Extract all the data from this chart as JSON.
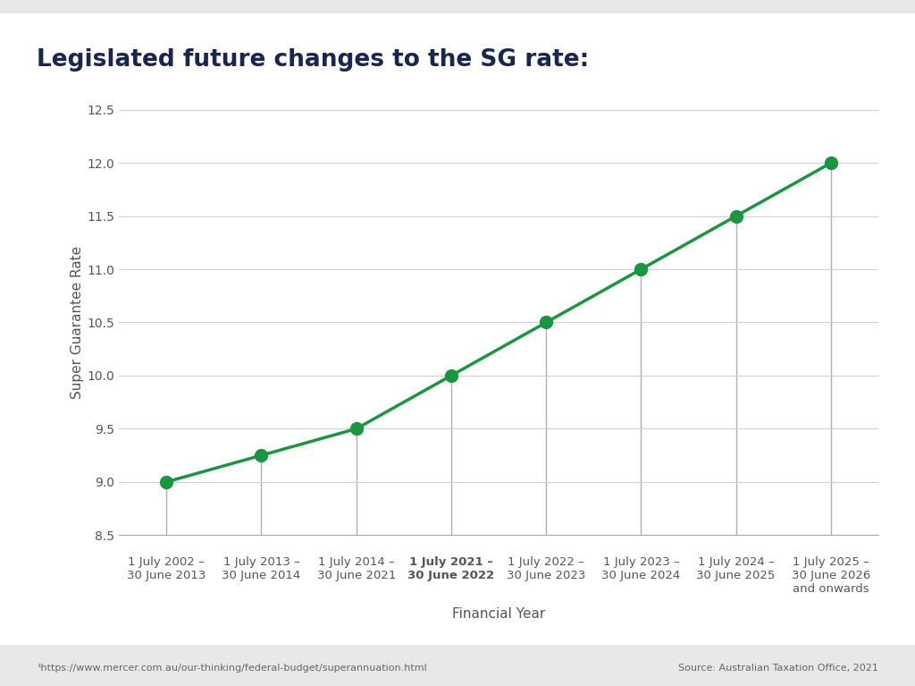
{
  "title": "Legislated future changes to the SG rate:",
  "xlabel": "Financial Year",
  "ylabel": "Super Guarantee Rate",
  "x_labels": [
    "1 July 2002 –\n30 June 2013",
    "1 July 2013 –\n30 June 2014",
    "1 July 2014 –\n30 June 2021",
    "1 July 2021 –\n30 June 2022",
    "1 July 2022 –\n30 June 2023",
    "1 July 2023 –\n30 June 2024",
    "1 July 2024 –\n30 June 2025",
    "1 July 2025 –\n30 June 2026\nand onwards"
  ],
  "x_labels_bold": [
    false,
    false,
    false,
    true,
    false,
    false,
    false,
    false
  ],
  "y_values": [
    9.0,
    9.25,
    9.5,
    10.0,
    10.5,
    11.0,
    11.5,
    12.0
  ],
  "ylim": [
    8.5,
    12.5
  ],
  "line_color": "#1a9641",
  "marker_color": "#1a9641",
  "vline_color": "#b0b0b0",
  "grid_color": "#d0d0d0",
  "outer_bg": "#e8e8e8",
  "inner_bg": "#ffffff",
  "title_color": "#1a2550",
  "axis_label_color": "#555555",
  "tick_label_color": "#555555",
  "footnote_left": "¹https://www.mercer.com.au/our-thinking/federal-budget/superannuation.html",
  "footnote_right": "Source: Australian Taxation Office, 2021",
  "title_fontsize": 19,
  "axis_label_fontsize": 11,
  "tick_fontsize": 10,
  "footnote_fontsize": 8
}
